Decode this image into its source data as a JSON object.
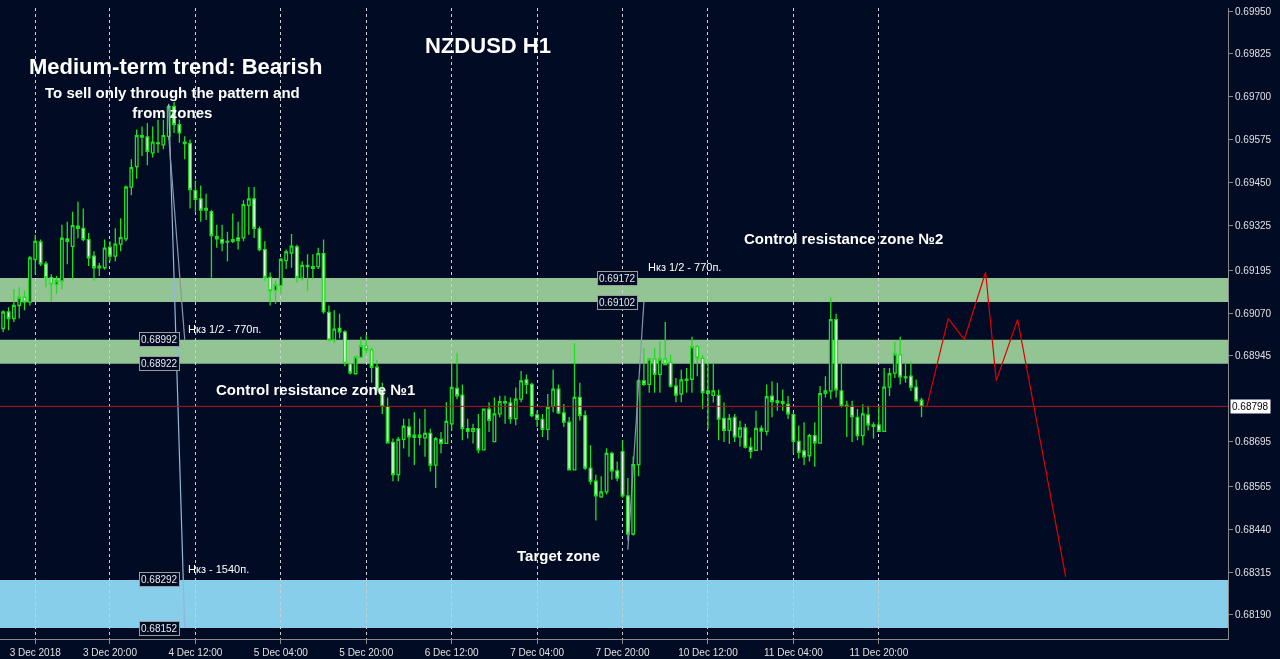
{
  "chart_data": {
    "type": "candlestick",
    "title": "NZDUSD H1",
    "color": "#1fe01f",
    "annotations": [
      "Medium-term trend: Bearish",
      "To sell only through the pattern and from zones",
      "Control resistance zone №1",
      "Control resistance zone №2",
      "Target zone",
      {
        "text": "0.68992",
        "y": 0.68992
      },
      {
        "text": "0.68922",
        "y": 0.68922
      },
      {
        "text": "0.69172",
        "y": 0.69172
      },
      {
        "text": "0.69102",
        "y": 0.69102
      },
      {
        "text": "0.68292",
        "y": 0.68292
      },
      {
        "text": "0.68152",
        "y": 0.68152
      }
    ],
    "categories": [
      null,
      null,
      null,
      null,
      null,
      null,
      "3 Dec 2018",
      null,
      null,
      null,
      null,
      null,
      null,
      null,
      null,
      null,
      null,
      null,
      null,
      null,
      "3 Dec 20:00",
      null,
      null,
      null,
      null,
      null,
      null,
      null,
      null,
      null,
      null,
      null,
      null,
      null,
      null,
      null,
      "4 Dec 12:00",
      null,
      null,
      null,
      null,
      null,
      null,
      null,
      null,
      null,
      null,
      null,
      null,
      null,
      null,
      null,
      "5 Dec 04:00",
      null,
      null,
      null,
      null,
      null,
      null,
      null,
      null,
      null,
      null,
      null,
      null,
      null,
      null,
      null,
      "5 Dec 20:00",
      null,
      null,
      null,
      null,
      null,
      null,
      null,
      null,
      null,
      null,
      null,
      null,
      null,
      null,
      null,
      "6 Dec 12:00",
      null,
      null,
      null,
      null,
      null,
      null,
      null,
      null,
      null,
      null,
      null,
      null,
      null,
      null,
      null,
      "7 Dec 04:00",
      null,
      null,
      null,
      null,
      null,
      null,
      null,
      null,
      null,
      null,
      null,
      null,
      null,
      null,
      null,
      "7 Dec 20:00",
      null,
      null,
      null,
      null,
      null,
      null,
      null,
      null,
      null,
      null,
      null,
      null,
      null,
      null,
      null,
      "10 Dec 12:00",
      null,
      null,
      null,
      null,
      null,
      null,
      null,
      null,
      null,
      null,
      null,
      null,
      null,
      null,
      null,
      "11 Dec 04:00",
      null,
      null,
      null,
      null,
      null,
      null,
      null,
      null,
      null,
      null,
      null,
      null,
      null,
      null,
      null,
      "11 Dec 20:00",
      null,
      null,
      null,
      null,
      null,
      null,
      null,
      null,
      null,
      null,
      null,
      null,
      null,
      null,
      null,
      null,
      null,
      null,
      null,
      null,
      null,
      null,
      null,
      null,
      null,
      null,
      null,
      null,
      null,
      null,
      null,
      null,
      null,
      null,
      null,
      null,
      null,
      null,
      null,
      null,
      null,
      null,
      null,
      null,
      null,
      null,
      null,
      null,
      null,
      null,
      null,
      null,
      null,
      null,
      null,
      null,
      null,
      null,
      null,
      null,
      null,
      null,
      null,
      null,
      null
    ],
    "ohlc": [
      [
        0.69025,
        0.69078,
        0.69015,
        0.69073
      ],
      [
        0.69073,
        0.69087,
        0.6902,
        0.69054
      ],
      [
        0.69054,
        0.6914,
        0.69044,
        0.69092
      ],
      [
        0.69092,
        0.69145,
        0.69054,
        0.69116
      ],
      [
        0.69116,
        0.69135,
        0.69078,
        0.69102
      ],
      [
        0.69102,
        0.69236,
        0.69092,
        0.69231
      ],
      [
        0.69226,
        0.69298,
        0.69183,
        0.69279
      ],
      [
        0.69277,
        0.69284,
        0.69207,
        0.69213
      ],
      [
        0.69213,
        0.69221,
        0.69145,
        0.69173
      ],
      [
        0.69173,
        0.69183,
        0.69102,
        0.69154
      ],
      [
        0.69154,
        0.69178,
        0.69126,
        0.69164
      ],
      [
        0.69164,
        0.69327,
        0.6914,
        0.69288
      ],
      [
        0.69286,
        0.69336,
        0.69212,
        0.69279
      ],
      [
        0.69264,
        0.69365,
        0.69169,
        0.69325
      ],
      [
        0.69323,
        0.69394,
        0.69288,
        0.69317
      ],
      [
        0.69317,
        0.69375,
        0.69279,
        0.69284
      ],
      [
        0.69284,
        0.69303,
        0.69207,
        0.69231
      ],
      [
        0.69236,
        0.6925,
        0.69164,
        0.69202
      ],
      [
        0.69202,
        0.69216,
        0.69178,
        0.69207
      ],
      [
        0.69202,
        0.69284,
        0.69197,
        0.69259
      ],
      [
        0.69262,
        0.69279,
        0.69221,
        0.69236
      ],
      [
        0.69236,
        0.69317,
        0.69221,
        0.69271
      ],
      [
        0.69271,
        0.69346,
        0.6925,
        0.6929
      ],
      [
        0.69286,
        0.69442,
        0.69279,
        0.69437
      ],
      [
        0.69437,
        0.69518,
        0.69413,
        0.69494
      ],
      [
        0.69497,
        0.69605,
        0.69461,
        0.69587
      ],
      [
        0.69587,
        0.69614,
        0.69528,
        0.69583
      ],
      [
        0.69583,
        0.69624,
        0.69501,
        0.69541
      ],
      [
        0.69537,
        0.69614,
        0.69523,
        0.69568
      ],
      [
        0.69566,
        0.69633,
        0.69537,
        0.69564
      ],
      [
        0.6956,
        0.69633,
        0.69547,
        0.69587
      ],
      [
        0.69585,
        0.69676,
        0.69576,
        0.69672
      ],
      [
        0.69672,
        0.69686,
        0.69595,
        0.69619
      ],
      [
        0.69619,
        0.69633,
        0.69566,
        0.69595
      ],
      [
        0.69568,
        0.69585,
        0.69518,
        0.69564
      ],
      [
        0.69564,
        0.69576,
        0.69375,
        0.6943
      ],
      [
        0.69427,
        0.69456,
        0.69365,
        0.69401
      ],
      [
        0.69403,
        0.69442,
        0.69336,
        0.6937
      ],
      [
        0.69375,
        0.69418,
        0.69341,
        0.6937
      ],
      [
        0.69365,
        0.6937,
        0.69173,
        0.69296
      ],
      [
        0.69293,
        0.69327,
        0.6926,
        0.69286
      ],
      [
        0.69284,
        0.69327,
        0.6925,
        0.69274
      ],
      [
        0.69277,
        0.69307,
        0.69221,
        0.69279
      ],
      [
        0.69279,
        0.6936,
        0.69274,
        0.69284
      ],
      [
        0.69289,
        0.69336,
        0.69255,
        0.69281
      ],
      [
        0.69289,
        0.69399,
        0.69279,
        0.69386
      ],
      [
        0.69384,
        0.69437,
        0.69298,
        0.69403
      ],
      [
        0.69403,
        0.69437,
        0.69289,
        0.69317
      ],
      [
        0.69315,
        0.69322,
        0.6925,
        0.69255
      ],
      [
        0.69255,
        0.69279,
        0.69164,
        0.69174
      ],
      [
        0.69174,
        0.69188,
        0.69092,
        0.69135
      ],
      [
        0.69137,
        0.69164,
        0.69097,
        0.69152
      ],
      [
        0.6915,
        0.69231,
        0.69126,
        0.69226
      ],
      [
        0.69223,
        0.69255,
        0.69198,
        0.69248
      ],
      [
        0.69245,
        0.693,
        0.69202,
        0.69265
      ],
      [
        0.69263,
        0.69269,
        0.69159,
        0.69174
      ],
      [
        0.69172,
        0.69221,
        0.69164,
        0.69209
      ],
      [
        0.69209,
        0.69241,
        0.69135,
        0.69205
      ],
      [
        0.692,
        0.69241,
        0.69169,
        0.69205
      ],
      [
        0.69205,
        0.6926,
        0.69198,
        0.69243
      ],
      [
        0.69243,
        0.69284,
        0.69068,
        0.69074
      ],
      [
        0.69072,
        0.69092,
        0.68987,
        0.68992
      ],
      [
        0.68992,
        0.69078,
        0.68982,
        0.69023
      ],
      [
        0.69025,
        0.69068,
        0.68996,
        0.69015
      ],
      [
        0.69015,
        0.6902,
        0.68915,
        0.68923
      ],
      [
        0.68922,
        0.68924,
        0.68891,
        0.68896
      ],
      [
        0.68893,
        0.68945,
        0.68891,
        0.68942
      ],
      [
        0.68941,
        0.69001,
        0.68939,
        0.68975
      ],
      [
        0.68974,
        0.69006,
        0.68953,
        0.68963
      ],
      [
        0.68963,
        0.68968,
        0.68867,
        0.68912
      ],
      [
        0.68912,
        0.68934,
        0.68838,
        0.68846
      ],
      [
        0.68846,
        0.68867,
        0.68776,
        0.68798
      ],
      [
        0.68797,
        0.68824,
        0.6869,
        0.68692
      ],
      [
        0.68693,
        0.68704,
        0.6858,
        0.68599
      ],
      [
        0.68599,
        0.68709,
        0.6858,
        0.68702
      ],
      [
        0.68702,
        0.68762,
        0.68675,
        0.6874
      ],
      [
        0.68738,
        0.68762,
        0.68651,
        0.68709
      ],
      [
        0.68714,
        0.68781,
        0.68627,
        0.68708
      ],
      [
        0.68708,
        0.68762,
        0.68685,
        0.68714
      ],
      [
        0.68706,
        0.6879,
        0.68651,
        0.68719
      ],
      [
        0.68719,
        0.68733,
        0.68608,
        0.68627
      ],
      [
        0.68627,
        0.68709,
        0.6856,
        0.68704
      ],
      [
        0.68702,
        0.68723,
        0.68661,
        0.6869
      ],
      [
        0.6869,
        0.6881,
        0.6869,
        0.68754
      ],
      [
        0.68747,
        0.68924,
        0.68728,
        0.68853
      ],
      [
        0.6885,
        0.68953,
        0.68819,
        0.68829
      ],
      [
        0.68831,
        0.68862,
        0.68699,
        0.68733
      ],
      [
        0.68733,
        0.68762,
        0.68704,
        0.68725
      ],
      [
        0.68725,
        0.68747,
        0.6869,
        0.68733
      ],
      [
        0.68733,
        0.68776,
        0.68661,
        0.68671
      ],
      [
        0.68671,
        0.6879,
        0.68671,
        0.6879
      ],
      [
        0.6879,
        0.6881,
        0.68723,
        0.68757
      ],
      [
        0.68695,
        0.68824,
        0.68695,
        0.68776
      ],
      [
        0.68776,
        0.68829,
        0.68766,
        0.68812
      ],
      [
        0.68812,
        0.68829,
        0.68747,
        0.68808
      ],
      [
        0.68808,
        0.68824,
        0.68747,
        0.68762
      ],
      [
        0.68762,
        0.68853,
        0.68743,
        0.68819
      ],
      [
        0.68819,
        0.68901,
        0.6881,
        0.68872
      ],
      [
        0.68875,
        0.68891,
        0.68834,
        0.68862
      ],
      [
        0.68862,
        0.68867,
        0.68766,
        0.68771
      ],
      [
        0.68773,
        0.68786,
        0.68738,
        0.6876
      ],
      [
        0.6876,
        0.68776,
        0.68709,
        0.68731
      ],
      [
        0.68731,
        0.68834,
        0.68699,
        0.68795
      ],
      [
        0.68798,
        0.68905,
        0.68781,
        0.68848
      ],
      [
        0.68848,
        0.68862,
        0.68776,
        0.68779
      ],
      [
        0.68779,
        0.68805,
        0.68738,
        0.68752
      ],
      [
        0.68752,
        0.68767,
        0.68613,
        0.68613
      ],
      [
        0.68613,
        0.68982,
        0.68613,
        0.68824
      ],
      [
        0.68824,
        0.68867,
        0.68757,
        0.68771
      ],
      [
        0.68771,
        0.68786,
        0.68613,
        0.68618
      ],
      [
        0.68618,
        0.68685,
        0.6857,
        0.6858
      ],
      [
        0.6858,
        0.68599,
        0.68465,
        0.68537
      ],
      [
        0.68534,
        0.68594,
        0.68532,
        0.68549
      ],
      [
        0.68549,
        0.68676,
        0.68541,
        0.68661
      ],
      [
        0.68661,
        0.68666,
        0.68584,
        0.6861
      ],
      [
        0.6861,
        0.68637,
        0.6858,
        0.68589
      ],
      [
        0.68666,
        0.68699,
        0.68532,
        0.68537
      ],
      [
        0.68537,
        0.68589,
        0.68407,
        0.68426
      ],
      [
        0.68426,
        0.68652,
        0.68422,
        0.68628
      ],
      [
        0.68628,
        0.68877,
        0.68594,
        0.68872
      ],
      [
        0.68872,
        0.68968,
        0.68857,
        0.68862
      ],
      [
        0.68862,
        0.68939,
        0.68838,
        0.68936
      ],
      [
        0.68936,
        0.68968,
        0.68838,
        0.68891
      ],
      [
        0.68891,
        0.68987,
        0.68838,
        0.68936
      ],
      [
        0.68936,
        0.69044,
        0.6892,
        0.6892
      ],
      [
        0.68926,
        0.68949,
        0.68853,
        0.68857
      ],
      [
        0.68857,
        0.68881,
        0.6881,
        0.68831
      ],
      [
        0.68834,
        0.68905,
        0.6881,
        0.68875
      ],
      [
        0.68877,
        0.6891,
        0.68838,
        0.68874
      ],
      [
        0.68877,
        0.69001,
        0.68838,
        0.68972
      ],
      [
        0.68972,
        0.68977,
        0.68886,
        0.68939
      ],
      [
        0.68938,
        0.68948,
        0.6879,
        0.68838
      ],
      [
        0.68843,
        0.68926,
        0.68732,
        0.68836
      ],
      [
        0.6883,
        0.68926,
        0.68809,
        0.68843
      ],
      [
        0.6883,
        0.68847,
        0.68699,
        0.68761
      ],
      [
        0.68763,
        0.68809,
        0.68694,
        0.68728
      ],
      [
        0.68728,
        0.68776,
        0.68689,
        0.68763
      ],
      [
        0.68766,
        0.68776,
        0.68694,
        0.68709
      ],
      [
        0.68709,
        0.68756,
        0.6868,
        0.68735
      ],
      [
        0.68735,
        0.68747,
        0.68675,
        0.68679
      ],
      [
        0.68679,
        0.68707,
        0.68646,
        0.68667
      ],
      [
        0.6867,
        0.68785,
        0.6867,
        0.68734
      ],
      [
        0.68734,
        0.68742,
        0.6867,
        0.68726
      ],
      [
        0.68725,
        0.68862,
        0.68713,
        0.68826
      ],
      [
        0.68828,
        0.68871,
        0.68766,
        0.68812
      ],
      [
        0.68814,
        0.68867,
        0.68785,
        0.68809
      ],
      [
        0.68812,
        0.68847,
        0.68785,
        0.68807
      ],
      [
        0.68804,
        0.68828,
        0.68761,
        0.68776
      ],
      [
        0.68774,
        0.6878,
        0.68661,
        0.68696
      ],
      [
        0.68696,
        0.68742,
        0.68646,
        0.68664
      ],
      [
        0.68668,
        0.68752,
        0.68627,
        0.68651
      ],
      [
        0.68654,
        0.68718,
        0.68637,
        0.68713
      ],
      [
        0.68713,
        0.68752,
        0.68622,
        0.68692
      ],
      [
        0.68691,
        0.68857,
        0.68689,
        0.68835
      ],
      [
        0.68836,
        0.68886,
        0.68824,
        0.68843
      ],
      [
        0.68843,
        0.69116,
        0.68819,
        0.69051
      ],
      [
        0.69051,
        0.69068,
        0.68824,
        0.68846
      ],
      [
        0.68843,
        0.68929,
        0.68795,
        0.688
      ],
      [
        0.68801,
        0.68814,
        0.68709,
        0.68798
      ],
      [
        0.68798,
        0.68814,
        0.68694,
        0.68768
      ],
      [
        0.68766,
        0.6879,
        0.68699,
        0.68713
      ],
      [
        0.68713,
        0.68804,
        0.68685,
        0.68776
      ],
      [
        0.68773,
        0.688,
        0.68728,
        0.68744
      ],
      [
        0.68744,
        0.68752,
        0.68704,
        0.6874
      ],
      [
        0.68744,
        0.688,
        0.68723,
        0.68725
      ],
      [
        0.68725,
        0.6891,
        0.68723,
        0.68854
      ],
      [
        0.68854,
        0.6891,
        0.68828,
        0.68893
      ],
      [
        0.68895,
        0.68986,
        0.68881,
        0.68951
      ],
      [
        0.68948,
        0.69001,
        0.68862,
        0.68884
      ],
      [
        0.68884,
        0.68924,
        0.68867,
        0.68881
      ],
      [
        0.68886,
        0.68929,
        0.68843,
        0.68854
      ],
      [
        0.68854,
        0.68876,
        0.68814,
        0.68814
      ],
      [
        0.68816,
        0.68823,
        0.68766,
        0.68798
      ],
      null,
      null,
      null,
      null,
      null,
      null,
      null,
      null,
      null,
      null,
      null,
      null,
      null,
      null,
      null,
      null,
      null,
      null,
      null,
      null,
      null,
      null,
      null,
      null,
      null,
      null,
      null,
      null,
      null,
      null,
      null,
      null,
      null,
      null,
      null,
      null,
      null,
      null,
      null,
      null,
      null,
      null,
      null,
      null,
      null,
      null,
      null,
      null,
      null,
      null,
      null,
      null,
      null,
      null,
      null,
      null,
      null
    ],
    "series": [
      {
        "type": "line",
        "color": "#e00000",
        "values": [
          null,
          null,
          null,
          null,
          null,
          null,
          null,
          null,
          null,
          null,
          null,
          null,
          null,
          null,
          null,
          null,
          null,
          null,
          null,
          null,
          null,
          null,
          null,
          null,
          null,
          null,
          null,
          null,
          null,
          null,
          null,
          null,
          null,
          null,
          null,
          null,
          null,
          null,
          null,
          null,
          null,
          null,
          null,
          null,
          null,
          null,
          null,
          null,
          null,
          null,
          null,
          null,
          null,
          null,
          null,
          null,
          null,
          null,
          null,
          null,
          null,
          null,
          null,
          null,
          null,
          null,
          null,
          null,
          null,
          null,
          null,
          null,
          null,
          null,
          null,
          null,
          null,
          null,
          null,
          null,
          null,
          null,
          null,
          null,
          null,
          null,
          null,
          null,
          null,
          null,
          null,
          null,
          null,
          null,
          null,
          null,
          null,
          null,
          null,
          null,
          null,
          null,
          null,
          null,
          null,
          null,
          null,
          null,
          null,
          null,
          null,
          null,
          null,
          null,
          null,
          null,
          null,
          null,
          null,
          null,
          null,
          null,
          null,
          null,
          null,
          null,
          null,
          null,
          null,
          null,
          null,
          null,
          null,
          null,
          null,
          null,
          null,
          null,
          null,
          null,
          null,
          null,
          null,
          null,
          null,
          null,
          null,
          null,
          null,
          null,
          null,
          null,
          null,
          null,
          null,
          null,
          null,
          null,
          null,
          null,
          null,
          null,
          null,
          null,
          null,
          null,
          null,
          null,
          null,
          null,
          null,
          null,
          null,
          0.68798,
          null,
          null,
          null,
          0.69054,
          null,
          null,
          0.68993,
          null,
          null,
          null,
          0.69189,
          null,
          0.68873,
          null,
          null,
          null,
          0.69051,
          null,
          null,
          null,
          null,
          null,
          null,
          null,
          null,
          0.68301,
          null,
          null,
          null,
          null,
          null,
          null,
          null,
          null,
          null,
          null,
          null,
          null,
          null,
          null,
          null,
          null,
          null,
          null,
          null,
          null,
          null,
          null,
          null,
          null,
          null,
          null,
          null,
          null,
          null,
          null
        ]
      },
      {
        "type": "line",
        "color": "#8fb8d8",
        "values": [
          null,
          null,
          null,
          null,
          null,
          null,
          null,
          null,
          null,
          null,
          null,
          null,
          null,
          null,
          null,
          null,
          null,
          null,
          null,
          null,
          null,
          null,
          null,
          null,
          null,
          null,
          null,
          null,
          null,
          null,
          null,
          0.6968,
          null,
          null,
          0.68152,
          null,
          null,
          null,
          null,
          null,
          null,
          null,
          null,
          null,
          null,
          null,
          null,
          null,
          null,
          null,
          null,
          null,
          null,
          null,
          null,
          null,
          null,
          null,
          null,
          null,
          null,
          null,
          null,
          null,
          null,
          null,
          null,
          null,
          null,
          null,
          null,
          null,
          null,
          null,
          null,
          null,
          null,
          null,
          null,
          null,
          null,
          null,
          null,
          null,
          null,
          null,
          null,
          null,
          null,
          null,
          null,
          null,
          null,
          null,
          null,
          null,
          null,
          null,
          null,
          null,
          null,
          null,
          null,
          null,
          null,
          null,
          null,
          null,
          null,
          null,
          null,
          null,
          null,
          null,
          null,
          null,
          null,
          null,
          null,
          null,
          null,
          null,
          null,
          null,
          null,
          null,
          null,
          null,
          null,
          null,
          null,
          null,
          null,
          null,
          null,
          null,
          null,
          null,
          null,
          null,
          null,
          null,
          null,
          null,
          null,
          null,
          null,
          null,
          null,
          null,
          null,
          null,
          null,
          null,
          null,
          null,
          null,
          null,
          null,
          null,
          null,
          null,
          null,
          null,
          null,
          null,
          null,
          null,
          null,
          null,
          null,
          null,
          null,
          null,
          null,
          null,
          null,
          null,
          null,
          null,
          null,
          null,
          null,
          null,
          null,
          null,
          null,
          null,
          null,
          null,
          null,
          null,
          null,
          null,
          null,
          null,
          null,
          null,
          null,
          null,
          null,
          null,
          null,
          null,
          null,
          null,
          null,
          null,
          null,
          null,
          null,
          null,
          null,
          null,
          null,
          null,
          null,
          null,
          null,
          null,
          null,
          null,
          null,
          null,
          null,
          null,
          null,
          null,
          null,
          null
        ]
      },
      {
        "type": "line",
        "color": "#8a97a8",
        "values": [
          null,
          null,
          null,
          null,
          null,
          null,
          null,
          null,
          null,
          null,
          null,
          null,
          null,
          null,
          null,
          null,
          null,
          null,
          null,
          null,
          null,
          null,
          null,
          null,
          null,
          null,
          null,
          null,
          null,
          null,
          null,
          0.69585,
          null,
          null,
          0.68992,
          null,
          null,
          null,
          null,
          null,
          null,
          null,
          null,
          null,
          null,
          null,
          null,
          null,
          null,
          null,
          null,
          null,
          null,
          null,
          null,
          null,
          null,
          null,
          null,
          null,
          null,
          null,
          null,
          null,
          null,
          null,
          null,
          null,
          null,
          null,
          null,
          null,
          null,
          null,
          null,
          null,
          null,
          null,
          null,
          null,
          null,
          null,
          null,
          null,
          null,
          null,
          null,
          null,
          null,
          null,
          null,
          null,
          null,
          null,
          null,
          null,
          null,
          null,
          null,
          null,
          null,
          null,
          null,
          null,
          null,
          null,
          null,
          null,
          null,
          null,
          null,
          null,
          null,
          null,
          null,
          null,
          null,
          null,
          null,
          null,
          null,
          null,
          null,
          null,
          null,
          null,
          null,
          null,
          null,
          null,
          null,
          null,
          null,
          null,
          null,
          null,
          null,
          null,
          null,
          null,
          null,
          null,
          null,
          null,
          null,
          null,
          null,
          null,
          null,
          null,
          null,
          null,
          null,
          null,
          null,
          null,
          null,
          null,
          null,
          null,
          null,
          null,
          null,
          null,
          null,
          null,
          null,
          null,
          null,
          null,
          null,
          null,
          null,
          null,
          null,
          null,
          null,
          null,
          null,
          null,
          null,
          null,
          null,
          null,
          null,
          null,
          null,
          null,
          null,
          null,
          null,
          null,
          null,
          null,
          null,
          null,
          null,
          null,
          null,
          null,
          null,
          null,
          null,
          null,
          null,
          null,
          null,
          null,
          null,
          null,
          null,
          null,
          null,
          null,
          null,
          null,
          null,
          null,
          null,
          null,
          null,
          null,
          null,
          null,
          null,
          null,
          null,
          null,
          null,
          null
        ]
      },
      {
        "type": "line",
        "color": "#8a97a8",
        "values": [
          null,
          null,
          null,
          null,
          null,
          null,
          null,
          null,
          null,
          null,
          null,
          null,
          null,
          null,
          null,
          null,
          null,
          null,
          null,
          null,
          null,
          null,
          null,
          null,
          null,
          null,
          null,
          null,
          null,
          null,
          null,
          null,
          null,
          null,
          null,
          null,
          null,
          null,
          null,
          null,
          null,
          null,
          null,
          null,
          null,
          null,
          null,
          null,
          null,
          null,
          null,
          null,
          null,
          null,
          null,
          null,
          null,
          null,
          null,
          null,
          null,
          null,
          null,
          null,
          null,
          null,
          null,
          null,
          null,
          null,
          null,
          null,
          null,
          null,
          null,
          null,
          null,
          null,
          null,
          null,
          null,
          null,
          null,
          null,
          null,
          null,
          null,
          null,
          null,
          null,
          null,
          null,
          null,
          null,
          null,
          null,
          null,
          null,
          null,
          null,
          null,
          null,
          null,
          null,
          null,
          null,
          null,
          null,
          null,
          null,
          null,
          null,
          null,
          null,
          null,
          null,
          null,
          0.6838,
          null,
          null,
          0.69102,
          null,
          null,
          null,
          null,
          null,
          null,
          null,
          null,
          null,
          null,
          null,
          null,
          null,
          null,
          null,
          null,
          null,
          null,
          null,
          null,
          null,
          null,
          null,
          null,
          null,
          null,
          null,
          null,
          null,
          null,
          null,
          null,
          null,
          null,
          null,
          null,
          null,
          null,
          null,
          null,
          null,
          null,
          null,
          null,
          null,
          null,
          null,
          null,
          null,
          null,
          null,
          null,
          null,
          null,
          null,
          null,
          null,
          null,
          null,
          null,
          null,
          null,
          null,
          null,
          null,
          null,
          null,
          null,
          null,
          null,
          null,
          null,
          null,
          null,
          null,
          null,
          null,
          null,
          null,
          null,
          null,
          null,
          null,
          null,
          null,
          null,
          null,
          null,
          null,
          null,
          null,
          null,
          null,
          null,
          null,
          null,
          null,
          null,
          null,
          null,
          null,
          null,
          null,
          null,
          null,
          null,
          null,
          null,
          null
        ]
      }
    ],
    "bands": [
      {
        "axis": "y",
        "from": 0.68922,
        "to": 0.68992,
        "label": "Нкз 1/2 - 770п.",
        "color": "#93c493"
      },
      {
        "axis": "y",
        "from": 0.69102,
        "to": 0.69172,
        "label": "Нкз 1/2 - 770п.",
        "color": "#93c493"
      },
      {
        "axis": "y",
        "from": 0.68152,
        "to": 0.68292,
        "label": "Нкз - 1540п.",
        "color": "#87ceeb"
      }
    ],
    "ref_lines": [
      {
        "axis": "y",
        "value": 0.68798,
        "label": "0.68798",
        "color": "#b01818"
      }
    ],
    "ylim": [
      0.6812,
      0.69959
    ],
    "yticks": [
      {
        "value": 0.6995,
        "label": "0.69950"
      },
      {
        "value": 0.69825,
        "label": "0.69825"
      },
      {
        "value": 0.697,
        "label": "0.69700"
      },
      {
        "value": 0.69575,
        "label": "0.69575"
      },
      {
        "value": 0.6945,
        "label": "0.69450"
      },
      {
        "value": 0.69325,
        "label": "0.69325"
      },
      {
        "value": 0.69195,
        "label": "0.69195"
      },
      {
        "value": 0.6907,
        "label": "0.69070"
      },
      {
        "value": 0.68945,
        "label": "0.68945"
      },
      {
        "value": 0.68695,
        "label": "0.68695"
      },
      {
        "value": 0.68565,
        "label": "0.68565"
      },
      {
        "value": 0.6844,
        "label": "0.68440"
      },
      {
        "value": 0.68315,
        "label": "0.68315"
      },
      {
        "value": 0.6819,
        "label": "0.68190"
      }
    ],
    "grid": "x"
  }
}
